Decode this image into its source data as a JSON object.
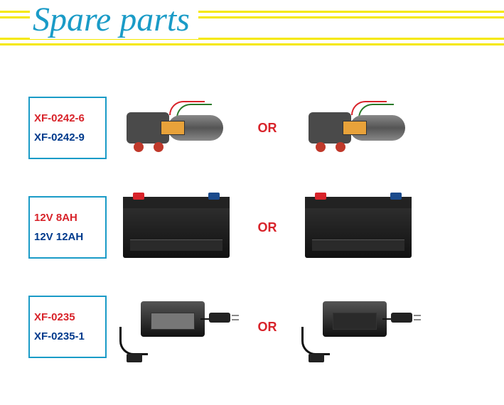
{
  "title": "Spare parts",
  "or_label": "OR",
  "colors": {
    "accent_blue": "#1a9bc7",
    "accent_red": "#d8232a",
    "accent_navy": "#003a8c",
    "rule_yellow": "#f5e800",
    "background": "#ffffff"
  },
  "rows": [
    {
      "label_top": "XF-0242-6",
      "label_bottom": "XF-0242-9",
      "kind": "pump"
    },
    {
      "label_top": "12V 8AH",
      "label_bottom": "12V 12AH",
      "kind": "battery"
    },
    {
      "label_top": "XF-0235",
      "label_bottom": "XF-0235-1",
      "kind": "charger"
    }
  ]
}
